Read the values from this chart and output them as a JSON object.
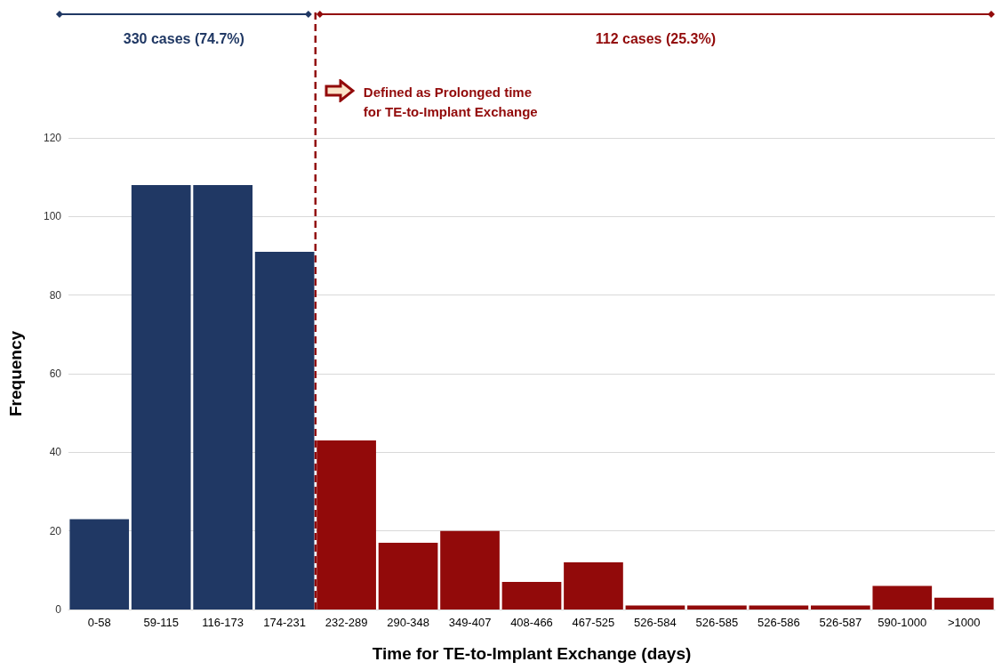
{
  "chart_data": {
    "type": "bar",
    "xlabel": "Time for TE-to-Implant Exchange (days)",
    "ylabel": "Frequency",
    "categories": [
      "0-58",
      "59-115",
      "116-173",
      "174-231",
      "232-289",
      "290-348",
      "349-407",
      "408-466",
      "467-525",
      "526-584",
      "526-585",
      "526-586",
      "526-587",
      "590-1000",
      ">1000"
    ],
    "values": [
      23,
      108,
      108,
      91,
      43,
      17,
      20,
      7,
      12,
      1,
      1,
      1,
      1,
      6,
      3
    ],
    "colors": [
      "#203864",
      "#203864",
      "#203864",
      "#203864",
      "#920a0a",
      "#920a0a",
      "#920a0a",
      "#920a0a",
      "#920a0a",
      "#920a0a",
      "#920a0a",
      "#920a0a",
      "#920a0a",
      "#920a0a",
      "#920a0a"
    ],
    "ylim": [
      0,
      120
    ],
    "yticks": [
      0,
      20,
      40,
      60,
      80,
      100,
      120
    ],
    "grid": "y",
    "ref_lines": [
      {
        "axis": "x",
        "value": "232-289",
        "label": "Defined as Prolonged time\nfor TE-to-Implant Exchange",
        "color": "#920a0a",
        "line_style": "dashed"
      }
    ],
    "annotations": [
      "330 cases (74.7%)",
      "112 cases (25.3%)"
    ]
  }
}
